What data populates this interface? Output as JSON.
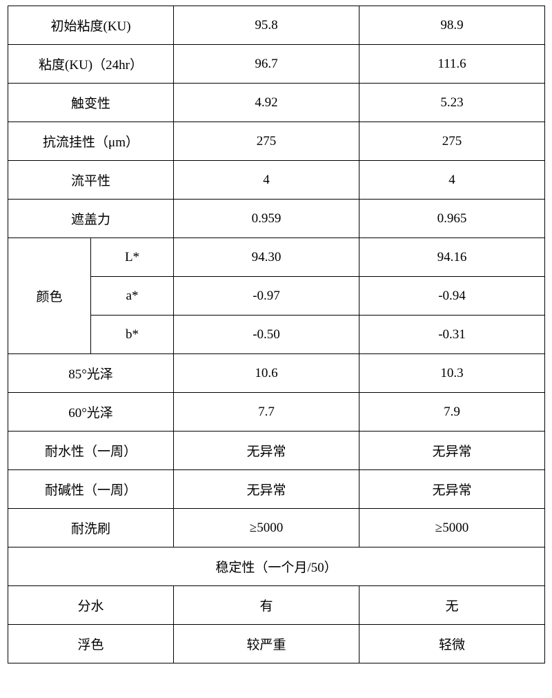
{
  "table": {
    "border_color": "#000000",
    "background_color": "#ffffff",
    "text_color": "#000000",
    "font_size_pt": 14,
    "rows": [
      {
        "label": "初始粘度(KU)",
        "v1": "95.8",
        "v2": "98.9"
      },
      {
        "label": "粘度(KU)（24hr）",
        "v1": "96.7",
        "v2": "111.6"
      },
      {
        "label": "触变性",
        "v1": "4.92",
        "v2": "5.23"
      },
      {
        "label": "抗流挂性（μm）",
        "v1": "275",
        "v2": "275"
      },
      {
        "label": "流平性",
        "v1": "4",
        "v2": "4"
      },
      {
        "label": "遮盖力",
        "v1": "0.959",
        "v2": "0.965"
      }
    ],
    "color_group": {
      "group_label": "颜色",
      "rows": [
        {
          "sub": "L*",
          "v1": "94.30",
          "v2": "94.16"
        },
        {
          "sub": "a*",
          "v1": "-0.97",
          "v2": "-0.94"
        },
        {
          "sub": "b*",
          "v1": "-0.50",
          "v2": "-0.31"
        }
      ]
    },
    "rows2": [
      {
        "label": "85°光泽",
        "v1": "10.6",
        "v2": "10.3"
      },
      {
        "label": "60°光泽",
        "v1": "7.7",
        "v2": "7.9"
      },
      {
        "label": "耐水性（一周）",
        "v1": "无异常",
        "v2": "无异常"
      },
      {
        "label": "耐碱性（一周）",
        "v1": "无异常",
        "v2": "无异常"
      },
      {
        "label": "耐洗刷",
        "v1": "≥5000",
        "v2": "≥5000"
      }
    ],
    "section_header": "稳定性（一个月/50）",
    "rows3": [
      {
        "label": "分水",
        "v1": "有",
        "v2": "无"
      },
      {
        "label": "浮色",
        "v1": "较严重",
        "v2": "轻微"
      }
    ]
  }
}
